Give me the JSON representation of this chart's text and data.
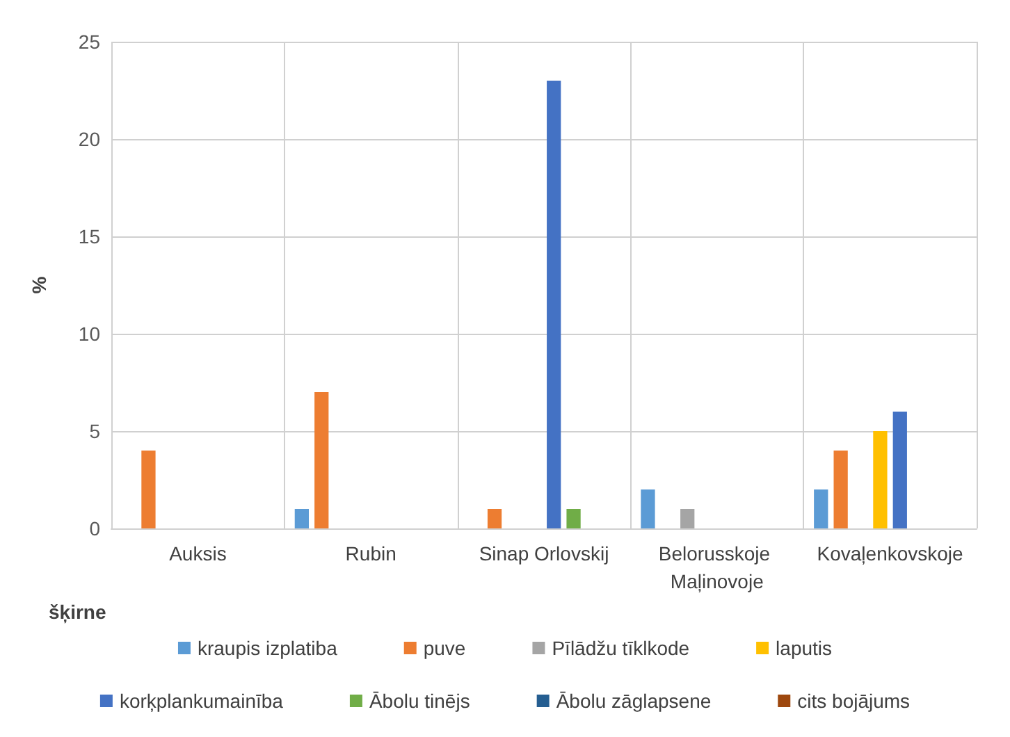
{
  "chart_data": {
    "type": "bar",
    "xlabel": "šķirne",
    "ylabel": "%",
    "categories": [
      "Auksis",
      "Rubin",
      "Sinap Orlovskij",
      "Belorusskoje Maļinovoje",
      "Kovaļenkovskoje"
    ],
    "series": [
      {
        "name": "kraupis izplatiba",
        "color": "#5b9bd5",
        "values": [
          0,
          1,
          0,
          2,
          2
        ]
      },
      {
        "name": "puve",
        "color": "#ed7d31",
        "values": [
          4,
          7,
          1,
          0,
          4
        ]
      },
      {
        "name": "Pīlādžu tīklkode",
        "color": "#a5a5a5",
        "values": [
          0,
          0,
          0,
          1,
          0
        ]
      },
      {
        "name": "laputis",
        "color": "#ffc000",
        "values": [
          0,
          0,
          0,
          0,
          5
        ]
      },
      {
        "name": "korķplankumainība",
        "color": "#4472c4",
        "values": [
          0,
          0,
          23,
          0,
          6
        ]
      },
      {
        "name": "Ābolu tinējs",
        "color": "#70ad47",
        "values": [
          0,
          0,
          1,
          0,
          0
        ]
      },
      {
        "name": "Ābolu zāglapsene",
        "color": "#255e91",
        "values": [
          0,
          0,
          0,
          0,
          0
        ]
      },
      {
        "name": "cits bojājums",
        "color": "#9e480e",
        "values": [
          0,
          0,
          0,
          0,
          0
        ]
      }
    ],
    "ylim": [
      0,
      25
    ],
    "yticks": [
      0,
      5,
      10,
      15,
      20,
      25
    ],
    "grid": true,
    "legend": "bottom"
  }
}
